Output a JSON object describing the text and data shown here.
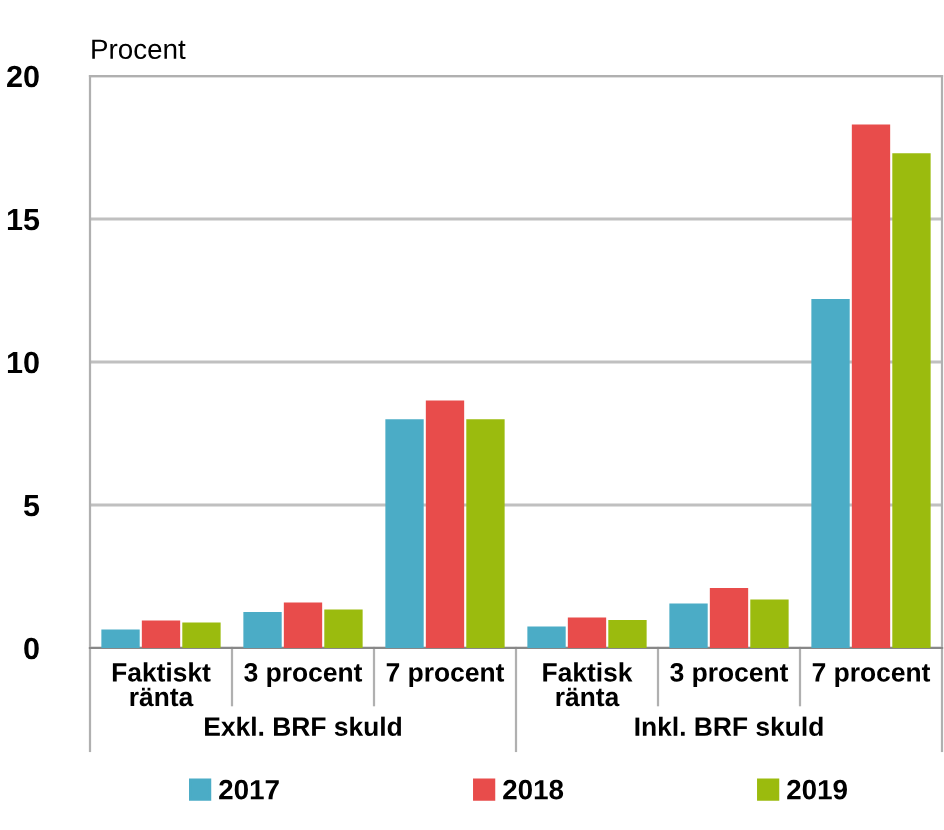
{
  "chart_data": {
    "type": "bar",
    "ylabel": "Procent",
    "categories": [
      "Faktiskt\nränta",
      "3 procent",
      "7 procent",
      "Faktisk\nränta",
      "3 procent",
      "7 procent"
    ],
    "series": [
      {
        "name": "2017",
        "color": "#4bacc6",
        "values": [
          0.65,
          1.26,
          8.0,
          0.75,
          1.56,
          12.2
        ]
      },
      {
        "name": "2018",
        "color": "#e84c4b",
        "values": [
          0.96,
          1.59,
          8.65,
          1.07,
          2.1,
          18.3
        ]
      },
      {
        "name": "2019",
        "color": "#9bbb0e",
        "values": [
          0.89,
          1.35,
          8.0,
          0.98,
          1.7,
          17.3
        ]
      }
    ],
    "annotations": [
      "Exkl. BRF skuld",
      "Inkl. BRF skuld"
    ],
    "ylim": [
      0,
      20
    ],
    "yticks": [
      0,
      5,
      10,
      15,
      20
    ],
    "grid": "y",
    "legend": "bottom"
  }
}
